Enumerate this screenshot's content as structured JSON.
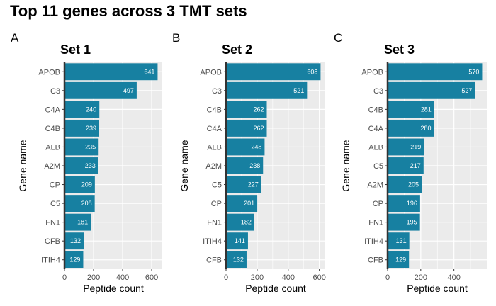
{
  "title": "Top 11 genes across 3 TMT sets",
  "colors": {
    "bar": "#1780a1",
    "panel_bg": "#ebebeb",
    "grid": "#ffffff",
    "zero_line": "#333333",
    "tick_text": "#4d4d4d"
  },
  "chart_data": [
    {
      "type": "bar",
      "orientation": "horizontal",
      "panel_letter": "A",
      "title": "Set 1",
      "xlabel": "Peptide count",
      "ylabel": "Gene name",
      "xlim": [
        0,
        673
      ],
      "xticks": [
        0,
        200,
        400,
        600
      ],
      "categories": [
        "APOB",
        "C3",
        "C4A",
        "C4B",
        "ALB",
        "A2M",
        "CP",
        "C5",
        "FN1",
        "CFB",
        "ITIH4"
      ],
      "values": [
        641,
        497,
        240,
        239,
        235,
        233,
        209,
        208,
        181,
        132,
        129
      ]
    },
    {
      "type": "bar",
      "orientation": "horizontal",
      "panel_letter": "B",
      "title": "Set 2",
      "xlabel": "Peptide count",
      "ylabel": "Gene name",
      "xlim": [
        0,
        638
      ],
      "xticks": [
        0,
        200,
        400,
        600
      ],
      "categories": [
        "APOB",
        "C3",
        "C4B",
        "C4A",
        "ALB",
        "A2M",
        "C5",
        "CP",
        "FN1",
        "ITIH4",
        "CFB"
      ],
      "values": [
        608,
        521,
        262,
        262,
        248,
        238,
        227,
        201,
        182,
        141,
        132
      ]
    },
    {
      "type": "bar",
      "orientation": "horizontal",
      "panel_letter": "C",
      "title": "Set 3",
      "xlabel": "Peptide count",
      "ylabel": "Gene name",
      "xlim": [
        0,
        598
      ],
      "xticks": [
        0,
        200,
        400
      ],
      "categories": [
        "APOB",
        "C3",
        "C4B",
        "C4A",
        "ALB",
        "C5",
        "A2M",
        "CP",
        "FN1",
        "ITIH4",
        "CFB"
      ],
      "values": [
        570,
        527,
        281,
        280,
        219,
        217,
        205,
        196,
        195,
        131,
        129
      ]
    }
  ]
}
